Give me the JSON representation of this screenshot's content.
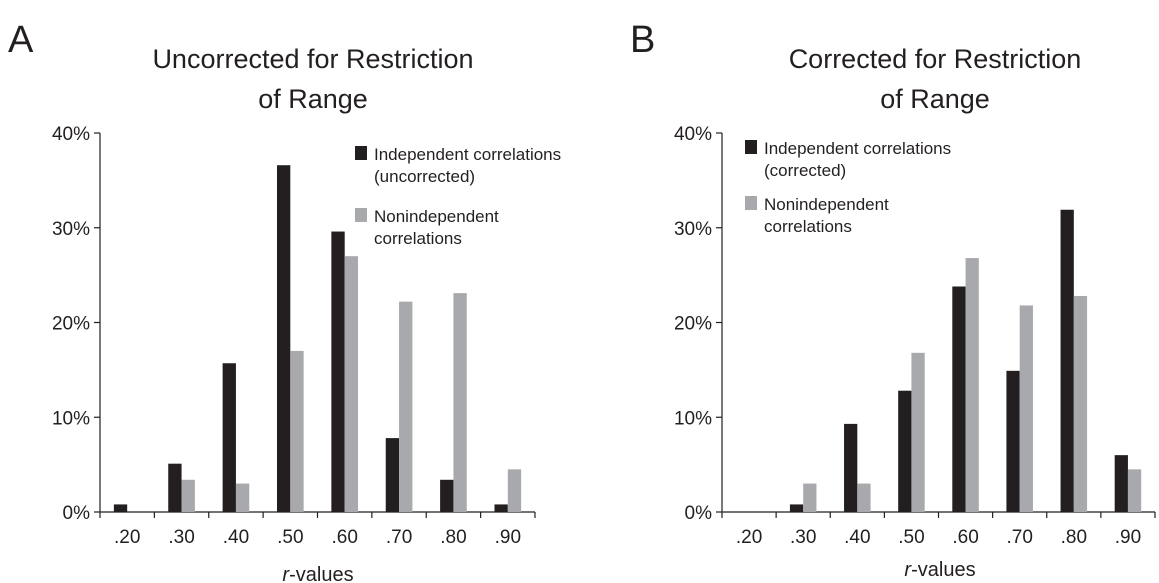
{
  "chart_data": [
    {
      "panel_label": "A",
      "type": "bar",
      "title_lines": [
        "Uncorrected for Restriction",
        "of Range"
      ],
      "xlabel_italic": "r",
      "xlabel_rest": "-values",
      "ylabel": "",
      "categories": [
        ".20",
        ".30",
        ".40",
        ".50",
        ".60",
        ".70",
        ".80",
        ".90"
      ],
      "yticks": [
        "0%",
        "10%",
        "20%",
        "30%",
        "40%"
      ],
      "ylim": [
        0,
        40
      ],
      "grid": false,
      "legend_placement": "top-right",
      "series": [
        {
          "name_lines": [
            "Independent correlations",
            "(uncorrected)"
          ],
          "color": "#231f20",
          "values": [
            0.8,
            5.1,
            15.7,
            36.6,
            29.6,
            7.8,
            3.4,
            0.8
          ]
        },
        {
          "name_lines": [
            "Nonindependent",
            "correlations"
          ],
          "color": "#a7a9ac",
          "values": [
            0,
            3.4,
            3.0,
            17.0,
            27.0,
            22.2,
            23.1,
            4.5
          ]
        }
      ]
    },
    {
      "panel_label": "B",
      "type": "bar",
      "title_lines": [
        "Corrected for Restriction",
        "of Range"
      ],
      "xlabel_italic": "r",
      "xlabel_rest": "-values",
      "ylabel": "",
      "categories": [
        ".20",
        ".30",
        ".40",
        ".50",
        ".60",
        ".70",
        ".80",
        ".90"
      ],
      "yticks": [
        "0%",
        "10%",
        "20%",
        "30%",
        "40%"
      ],
      "ylim": [
        0,
        40
      ],
      "grid": false,
      "legend_placement": "top-left",
      "series": [
        {
          "name_lines": [
            "Independent correlations",
            "(corrected)"
          ],
          "color": "#231f20",
          "values": [
            0,
            0.8,
            9.3,
            12.8,
            23.8,
            14.9,
            31.9,
            6.0
          ]
        },
        {
          "name_lines": [
            "Nonindependent",
            "correlations"
          ],
          "color": "#a7a9ac",
          "values": [
            0,
            3.0,
            3.0,
            16.8,
            26.8,
            21.8,
            22.8,
            4.5
          ]
        }
      ]
    }
  ]
}
